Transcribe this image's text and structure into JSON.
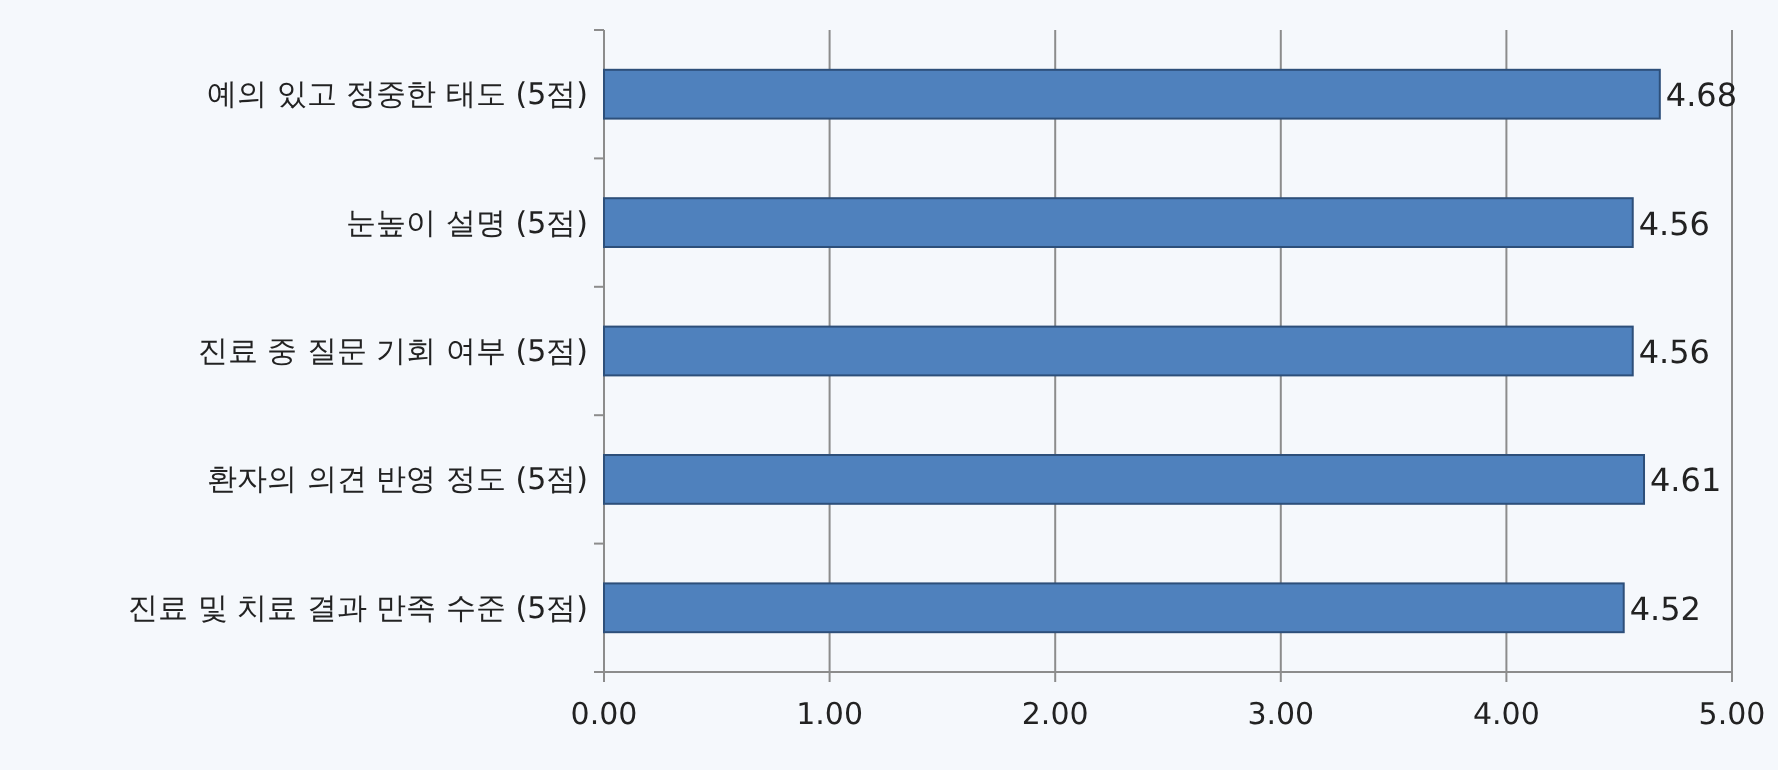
{
  "chart_data": {
    "type": "bar",
    "orientation": "horizontal",
    "categories": [
      "예의 있고 정중한 태도 (5점)",
      "눈높이 설명 (5점)",
      "진료 중 질문 기회 여부 (5점)",
      "환자의 의견 반영 정도 (5점)",
      "진료 및 치료 결과 만족 수준 (5점)"
    ],
    "values": [
      4.68,
      4.56,
      4.56,
      4.61,
      4.52
    ],
    "color": "#4f81bd",
    "xlim": [
      0,
      5
    ],
    "xticks": [
      {
        "value": 0,
        "label": "0.00"
      },
      {
        "value": 1,
        "label": "1.00"
      },
      {
        "value": 2,
        "label": "2.00"
      },
      {
        "value": 3,
        "label": "3.00"
      },
      {
        "value": 4,
        "label": "4.00"
      },
      {
        "value": 5,
        "label": "5.00"
      }
    ],
    "grid": "x",
    "data_labels": true
  }
}
